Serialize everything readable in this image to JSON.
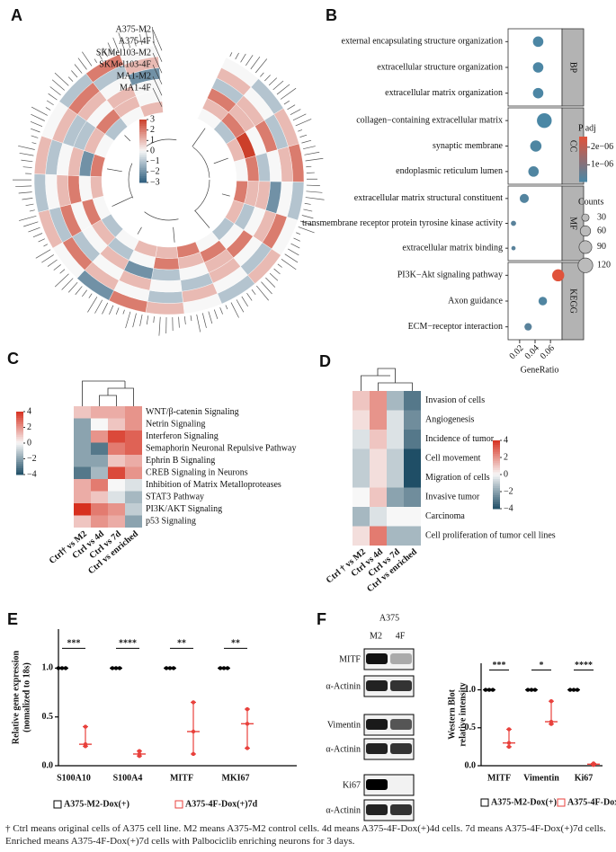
{
  "chart_data": [
    {
      "label": "A",
      "type": "heatmap",
      "polar": true,
      "rows": [
        "A375-M2",
        "A375-4F",
        "SKMel103-M2",
        "SKMel103-4F",
        "MA1-M2",
        "MA1-4F"
      ],
      "values": [
        [
          0,
          -1,
          1,
          2,
          -1,
          0,
          1,
          -1,
          0,
          1,
          2,
          -2,
          0,
          1,
          -1,
          1,
          0,
          -1,
          2,
          0
        ],
        [
          1,
          0,
          -1,
          1,
          0,
          2,
          -1,
          0,
          1,
          -1,
          0,
          1,
          2,
          -1,
          0,
          -1,
          1,
          2,
          -1,
          1
        ],
        [
          -1,
          1,
          2,
          0,
          -2,
          1,
          0,
          1,
          -1,
          0,
          1,
          0,
          -1,
          2,
          1,
          0,
          -1,
          1,
          0,
          -2
        ],
        [
          2,
          1,
          0,
          -1,
          1,
          0,
          2,
          1,
          0,
          -1,
          -2,
          1,
          0,
          0,
          2,
          1,
          -1,
          0,
          1,
          0
        ],
        [
          1,
          2,
          3,
          2,
          1,
          -1,
          0,
          2,
          1,
          2,
          0,
          -1,
          1,
          2,
          0,
          -2,
          1,
          2,
          1,
          0
        ],
        [
          0,
          -1,
          1,
          0,
          2,
          1,
          -1,
          0,
          2,
          1,
          1,
          0,
          -1,
          0,
          1,
          2,
          0,
          -1,
          0,
          1
        ]
      ],
      "colorbar_ticks": [
        3,
        2,
        1,
        0,
        {
          "value": -1,
          "label": "−1"
        },
        {
          "value": -2,
          "label": "−2"
        },
        {
          "value": -3,
          "label": "−3"
        }
      ],
      "colors": [
        "#2e5e7e",
        "#f7f7f7",
        "#cc3f2a"
      ]
    },
    {
      "label": "B",
      "type": "dotplot",
      "groups": [
        {
          "name": "BP",
          "terms": [
            "external encapsulating structure organization",
            "extracellular structure organization",
            "extracellular matrix organization"
          ],
          "x": [
            0.044,
            0.044,
            0.044
          ],
          "counts": [
            60,
            60,
            60
          ],
          "padj": [
            8e-08,
            8e-08,
            8e-08
          ]
        },
        {
          "name": "CC",
          "terms": [
            "collagen−containing extracellular matrix",
            "synaptic membrane",
            "endoplasmic reticulum lumen"
          ],
          "x": [
            0.052,
            0.041,
            0.038
          ],
          "counts": [
            120,
            70,
            60
          ],
          "padj": [
            5e-08,
            1.2e-07,
            1.5e-07
          ]
        },
        {
          "name": "MF",
          "terms": [
            "extracellular matrix structural constituent",
            "transmembrane receptor protein tyrosine kinase activity",
            "extracellular matrix binding"
          ],
          "x": [
            0.026,
            0.012,
            0.012
          ],
          "counts": [
            45,
            15,
            10
          ],
          "padj": [
            2e-07,
            3e-07,
            3e-07
          ]
        },
        {
          "name": "KEGG",
          "terms": [
            "PI3K−Akt signaling pathway",
            "Axon guidance",
            "ECM−receptor interaction"
          ],
          "x": [
            0.07,
            0.05,
            0.031
          ],
          "counts": [
            80,
            40,
            30
          ],
          "padj": [
            2.6e-06,
            1.5e-07,
            3e-07
          ]
        }
      ],
      "xlabel": "GeneRatio",
      "xlim": [
        0.005,
        0.075
      ],
      "xticks": [
        0.02,
        0.04,
        0.06
      ],
      "color_title": "P adj",
      "color_ticks": [
        {
          "value": 2e-06,
          "label": "2e−06"
        },
        {
          "value": 1e-06,
          "label": "1e−06"
        }
      ],
      "size_title": "Counts",
      "size_ticks": [
        30,
        60,
        90,
        120
      ],
      "colors": [
        "#4a87a5",
        "#e0533b"
      ]
    },
    {
      "label": "C",
      "type": "heatmap",
      "rows": [
        "WNT/β-catenin Signaling",
        "Netrin Signaling",
        "Interferon Signaling",
        "Semaphorin Neuronal Repulsive Pathway",
        "Ephrin B Signaling",
        "CREB Signaling in Neurons",
        "Inhibition of Matrix Metalloproteases",
        "STAT3 Pathway",
        "PI3K/AKT Signaling",
        "p53 Signaling"
      ],
      "columns": [
        "Ctrl† vs M2",
        "Ctrl vs 4d",
        "Ctrl vs 7d",
        "Ctrl vs enriched"
      ],
      "values": [
        [
          1,
          1.5,
          1.5,
          2
        ],
        [
          -2,
          0,
          1,
          2
        ],
        [
          -2,
          2,
          3.5,
          3
        ],
        [
          -2,
          -3,
          2.5,
          3
        ],
        [
          -2,
          -2,
          1,
          1.5
        ],
        [
          -3,
          -1.5,
          3.5,
          2
        ],
        [
          1.5,
          2.5,
          0,
          -0.5
        ],
        [
          1.5,
          1,
          -0.5,
          -1.5
        ],
        [
          4,
          2.5,
          2,
          -1
        ],
        [
          1,
          2,
          1.5,
          -2
        ]
      ],
      "colorbar_ticks": [
        4,
        2,
        0,
        {
          "value": -2,
          "label": "−2"
        },
        {
          "value": -4,
          "label": "−4"
        }
      ],
      "colors": [
        "#1f4e66",
        "#f7f7f7",
        "#d7301f"
      ]
    },
    {
      "label": "D",
      "type": "heatmap",
      "rows": [
        "Invasion of cells",
        "Angiogenesis",
        "Incidence of tumor",
        "Cell movement",
        "Migration of cells",
        "Invasive tumor",
        "Carcinoma",
        "Cell proliferation of tumor cell lines"
      ],
      "columns": [
        "Ctrl † vs M2",
        "Ctrl vs 4d",
        "Ctrl vs 7d",
        "Ctrl vs enriched"
      ],
      "values": [
        [
          1,
          2,
          -1.5,
          -3
        ],
        [
          0.5,
          2,
          -0.5,
          -2.5
        ],
        [
          -0.5,
          1,
          -0.5,
          -3
        ],
        [
          -1,
          0.5,
          -1,
          -4
        ],
        [
          -1,
          0.5,
          -1,
          -4
        ],
        [
          0,
          1,
          -2,
          -2.5
        ],
        [
          -1.5,
          -0.5,
          0,
          0
        ],
        [
          0.5,
          2.5,
          -1.5,
          -1.5
        ]
      ],
      "colorbar_ticks": [
        4,
        2,
        0,
        {
          "value": -2,
          "label": "−2"
        },
        {
          "value": -4,
          "label": "−4"
        }
      ],
      "colors": [
        "#1f4e66",
        "#f7f7f7",
        "#d7301f"
      ]
    },
    {
      "label": "E",
      "type": "strip",
      "ylabel": [
        "Relative gene expression",
        "(nomalized to 18s)"
      ],
      "categories": [
        "S100A10",
        "S100A4",
        "MITF",
        "MKI67"
      ],
      "ylim": [
        0,
        1.4
      ],
      "yticks": [
        {
          "value": 0,
          "label": "0.0"
        },
        {
          "value": 0.5,
          "label": "0.5"
        },
        {
          "value": 1,
          "label": "1.0"
        }
      ],
      "series": [
        {
          "name": "A375-M2-Dox(+)",
          "color": "#000000",
          "values": [
            1,
            1,
            1,
            1
          ],
          "points": [
            [
              1,
              1,
              1
            ],
            [
              1,
              1,
              1
            ],
            [
              1,
              1,
              1
            ],
            [
              1,
              1,
              1
            ]
          ]
        },
        {
          "name": "A375-4F-Dox(+)7d",
          "color": "#e8413c",
          "values": [
            0.22,
            0.12,
            0.35,
            0.43
          ],
          "points": [
            [
              0.4,
              0.22,
              0.2
            ],
            [
              0.15,
              0.12,
              0.1
            ],
            [
              0.65,
              0.35,
              0.12
            ],
            [
              0.58,
              0.43,
              0.18
            ]
          ]
        }
      ],
      "annotations": [
        "***",
        "****",
        "**",
        "**"
      ]
    },
    {
      "label": "F",
      "type": "strip",
      "blot": {
        "title": "A375",
        "lanes": [
          "M2",
          "4F"
        ],
        "bands": [
          "MITF",
          "α-Actinin",
          "Vimentin",
          "α-Actinin",
          "Ki67",
          "α-Actinin"
        ]
      },
      "ylabel": [
        "Western Blot",
        "relative intensity"
      ],
      "categories": [
        "MITF",
        "Vimentin",
        "Ki67"
      ],
      "ylim": [
        0,
        1.35
      ],
      "yticks": [
        {
          "value": 0,
          "label": "0.0"
        },
        {
          "value": 0.5,
          "label": "0.5"
        },
        {
          "value": 1,
          "label": "1.0"
        }
      ],
      "series": [
        {
          "name": "A375-M2-Dox(+)",
          "color": "#000000",
          "values": [
            1,
            1,
            1
          ],
          "points": [
            [
              1,
              1,
              1
            ],
            [
              1,
              1,
              1
            ],
            [
              1,
              1,
              1
            ]
          ]
        },
        {
          "name": "A375-4F-Dox(+)7d",
          "color": "#e8413c",
          "values": [
            0.3,
            0.58,
            0.02
          ],
          "points": [
            [
              0.48,
              0.3,
              0.25
            ],
            [
              0.85,
              0.58,
              0.55
            ],
            [
              0.03,
              0.02,
              0.01
            ]
          ]
        }
      ],
      "annotations": [
        "***",
        "*",
        "****"
      ]
    }
  ],
  "footnote": "† Ctrl means original cells of A375 cell line. M2 means A375-M2 control cells. 4d means A375-4F-Dox(+)4d cells. 7d means A375-4F-Dox(+)7d cells. Enriched means A375-4F-Dox(+)7d cells with Palbociclib enriching neurons for 3 days."
}
